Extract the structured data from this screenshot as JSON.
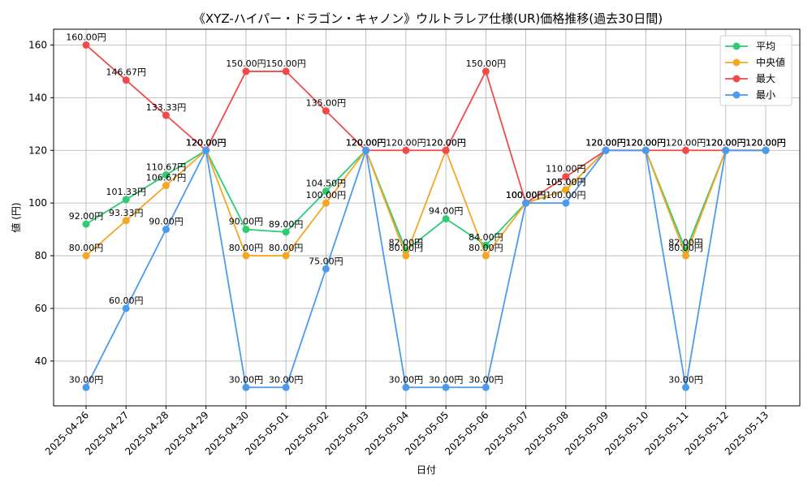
{
  "chart_data": {
    "type": "line",
    "title": "《XYZ-ハイパー・ドラゴン・キャノン》ウルトラレア仕様(UR)価格推移(過去30日間)",
    "xlabel": "日付",
    "ylabel": "値 (円)",
    "ylim": [
      23,
      166
    ],
    "yticks": [
      40,
      60,
      80,
      100,
      120,
      140,
      160
    ],
    "grid": true,
    "legend_position": "top-right",
    "label_suffix": "円",
    "categories": [
      "2025-04-26",
      "2025-04-27",
      "2025-04-28",
      "2025-04-29",
      "2025-04-30",
      "2025-05-01",
      "2025-05-02",
      "2025-05-03",
      "2025-05-04",
      "2025-05-05",
      "2025-05-06",
      "2025-05-07",
      "2025-05-08",
      "2025-05-09",
      "2025-05-10",
      "2025-05-11",
      "2025-05-12",
      "2025-05-13"
    ],
    "series": [
      {
        "name": "平均",
        "color": "#2ecc71",
        "values": [
          92.0,
          101.33,
          110.67,
          120.0,
          90.0,
          89.0,
          104.5,
          120.0,
          82.0,
          94.0,
          84.0,
          100.0,
          105.0,
          120.0,
          120.0,
          82.0,
          120.0,
          120.0
        ]
      },
      {
        "name": "中央値",
        "color": "#f5a623",
        "values": [
          80.0,
          93.33,
          106.67,
          120.0,
          80.0,
          80.0,
          100.0,
          120.0,
          80.0,
          120.0,
          80.0,
          100.0,
          105.0,
          120.0,
          120.0,
          80.0,
          120.0,
          120.0
        ]
      },
      {
        "name": "最大",
        "color": "#f24a4a",
        "values": [
          160.0,
          146.67,
          133.33,
          120.0,
          150.0,
          150.0,
          135.0,
          120.0,
          120.0,
          120.0,
          150.0,
          100.0,
          110.0,
          120.0,
          120.0,
          120.0,
          120.0,
          120.0
        ]
      },
      {
        "name": "最小",
        "color": "#4a9af0",
        "values": [
          30.0,
          60.0,
          90.0,
          120.0,
          30.0,
          30.0,
          75.0,
          120.0,
          30.0,
          30.0,
          30.0,
          100.0,
          100.0,
          120.0,
          120.0,
          30.0,
          120.0,
          120.0
        ]
      }
    ]
  }
}
